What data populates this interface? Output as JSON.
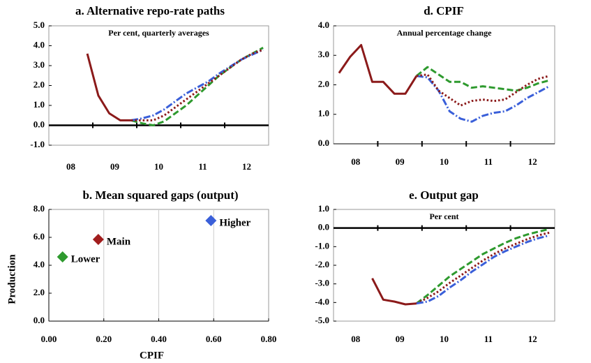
{
  "chart_data": [
    {
      "type": "line",
      "title": "a. Alternative repo-rate paths",
      "subtitle": "Per cent, quarterly averages",
      "categories": [
        null,
        null,
        "08",
        null,
        null,
        null,
        "09",
        null,
        null,
        null,
        "10",
        null,
        null,
        null,
        "11",
        null,
        null,
        null,
        "12",
        null
      ],
      "ylim": [
        -1,
        5
      ],
      "yticks": [
        {
          "value": -1,
          "label": "-1.0"
        },
        {
          "value": 0,
          "label": "0.0"
        },
        {
          "value": 1,
          "label": "1.0"
        },
        {
          "value": 2,
          "label": "2.0"
        },
        {
          "value": 3,
          "label": "3.0"
        },
        {
          "value": 4,
          "label": "4.0"
        },
        {
          "value": 5,
          "label": "5.0"
        }
      ],
      "series": [
        {
          "color": "#2e9a2e",
          "dash": "dashed",
          "values": [
            null,
            null,
            null,
            null,
            null,
            null,
            null,
            0.25,
            0.1,
            0.0,
            0.2,
            0.6,
            1.0,
            1.5,
            2.0,
            2.5,
            2.9,
            3.3,
            3.6,
            3.9
          ]
        },
        {
          "color": "#3a5fd9",
          "dash": "dashdot",
          "values": [
            null,
            null,
            null,
            null,
            null,
            null,
            null,
            0.25,
            0.35,
            0.5,
            0.8,
            1.2,
            1.6,
            1.9,
            2.2,
            2.6,
            2.95,
            3.3,
            3.55,
            3.8
          ]
        },
        {
          "color": "#8b1a1a",
          "dash": "dotted",
          "values": [
            null,
            null,
            null,
            null,
            null,
            null,
            null,
            0.25,
            0.25,
            0.25,
            0.5,
            0.9,
            1.3,
            1.7,
            2.1,
            2.5,
            2.9,
            3.3,
            3.6,
            3.8
          ]
        },
        {
          "color": "#8b1a1a",
          "dash": "solid",
          "values": [
            null,
            null,
            null,
            3.6,
            1.5,
            0.6,
            0.25,
            0.25,
            null,
            null,
            null,
            null,
            null,
            null,
            null,
            null,
            null,
            null,
            null,
            null
          ]
        }
      ]
    },
    {
      "type": "line",
      "title": "d. CPIF",
      "subtitle": "Annual percentage change",
      "categories": [
        null,
        null,
        "08",
        null,
        null,
        null,
        "09",
        null,
        null,
        null,
        "10",
        null,
        null,
        null,
        "11",
        null,
        null,
        null,
        "12",
        null
      ],
      "ylim": [
        0,
        4
      ],
      "yticks": [
        {
          "value": 0,
          "label": "0.0"
        },
        {
          "value": 1,
          "label": "1.0"
        },
        {
          "value": 2,
          "label": "2.0"
        },
        {
          "value": 3,
          "label": "3.0"
        },
        {
          "value": 4,
          "label": "4.0"
        }
      ],
      "series": [
        {
          "color": "#2e9a2e",
          "dash": "dashed",
          "values": [
            null,
            null,
            null,
            null,
            null,
            null,
            null,
            2.3,
            2.6,
            2.35,
            2.1,
            2.1,
            1.9,
            1.95,
            1.9,
            1.85,
            1.8,
            1.9,
            2.05,
            2.15
          ]
        },
        {
          "color": "#3a5fd9",
          "dash": "dashdot",
          "values": [
            null,
            null,
            null,
            null,
            null,
            null,
            null,
            2.3,
            2.25,
            1.8,
            1.1,
            0.85,
            0.75,
            0.95,
            1.05,
            1.1,
            1.3,
            1.55,
            1.75,
            1.95
          ]
        },
        {
          "color": "#8b1a1a",
          "dash": "dotted",
          "values": [
            null,
            null,
            null,
            null,
            null,
            null,
            null,
            2.3,
            2.35,
            1.8,
            1.55,
            1.3,
            1.45,
            1.5,
            1.45,
            1.5,
            1.75,
            2.0,
            2.2,
            2.3
          ]
        },
        {
          "color": "#8b1a1a",
          "dash": "solid",
          "values": [
            2.4,
            2.95,
            3.35,
            2.1,
            2.1,
            1.7,
            1.7,
            2.3,
            null,
            null,
            null,
            null,
            null,
            null,
            null,
            null,
            null,
            null,
            null,
            null
          ]
        }
      ]
    },
    {
      "type": "scatter",
      "title": "b. Mean squared gaps (output)",
      "xlabel": "CPIF",
      "ylabel": "Production",
      "grid": true,
      "xlim": [
        0,
        0.8
      ],
      "xticks": [
        {
          "value": 0,
          "label": "0.00"
        },
        {
          "value": 0.2,
          "label": "0.20"
        },
        {
          "value": 0.4,
          "label": "0.40"
        },
        {
          "value": 0.6,
          "label": "0.60"
        },
        {
          "value": 0.8,
          "label": "0.80"
        }
      ],
      "ylim": [
        0,
        8
      ],
      "yticks": [
        {
          "value": 0,
          "label": "0.0"
        },
        {
          "value": 2,
          "label": "2.0"
        },
        {
          "value": 4,
          "label": "4.0"
        },
        {
          "value": 6,
          "label": "6.0"
        },
        {
          "value": 8,
          "label": "8.0"
        }
      ],
      "series": [
        {
          "name": "Higher",
          "color": "#3a5fd9",
          "x": [
            0.59
          ],
          "values": [
            7.2
          ]
        },
        {
          "name": "Main",
          "color": "#a11d1d",
          "x": [
            0.18
          ],
          "values": [
            5.85
          ]
        },
        {
          "name": "Lower",
          "color": "#2e9a2e",
          "x": [
            0.05
          ],
          "values": [
            4.6
          ]
        }
      ]
    },
    {
      "type": "line",
      "title": "e. Output gap",
      "subtitle": "Per cent",
      "categories": [
        null,
        null,
        "08",
        null,
        null,
        null,
        "09",
        null,
        null,
        null,
        "10",
        null,
        null,
        null,
        "11",
        null,
        null,
        null,
        "12",
        null
      ],
      "ylim": [
        -5,
        1
      ],
      "yticks": [
        {
          "value": -5,
          "label": "-5.0"
        },
        {
          "value": -4,
          "label": "-4.0"
        },
        {
          "value": -3,
          "label": "-3.0"
        },
        {
          "value": -2,
          "label": "-2.0"
        },
        {
          "value": -1,
          "label": "-1.0"
        },
        {
          "value": 0,
          "label": "0.0"
        },
        {
          "value": 1,
          "label": "1.0"
        }
      ],
      "series": [
        {
          "color": "#2e9a2e",
          "dash": "dashed",
          "values": [
            null,
            null,
            null,
            null,
            null,
            null,
            null,
            -4.05,
            -3.6,
            -3.1,
            -2.6,
            -2.2,
            -1.8,
            -1.4,
            -1.1,
            -0.8,
            -0.55,
            -0.35,
            -0.2,
            -0.05
          ]
        },
        {
          "color": "#8b1a1a",
          "dash": "dotted",
          "values": [
            null,
            null,
            null,
            null,
            null,
            null,
            null,
            -4.05,
            -3.75,
            -3.4,
            -2.95,
            -2.55,
            -2.15,
            -1.75,
            -1.4,
            -1.1,
            -0.85,
            -0.6,
            -0.4,
            -0.25
          ]
        },
        {
          "color": "#3a5fd9",
          "dash": "dashdot",
          "values": [
            null,
            null,
            null,
            null,
            null,
            null,
            null,
            -4.05,
            -3.95,
            -3.65,
            -3.2,
            -2.8,
            -2.35,
            -1.95,
            -1.55,
            -1.25,
            -1.0,
            -0.75,
            -0.55,
            -0.4
          ]
        },
        {
          "color": "#8b1a1a",
          "dash": "solid",
          "values": [
            null,
            null,
            null,
            -2.7,
            -3.85,
            -3.95,
            -4.1,
            -4.05,
            null,
            null,
            null,
            null,
            null,
            null,
            null,
            null,
            null,
            null,
            null,
            null
          ]
        }
      ]
    }
  ]
}
